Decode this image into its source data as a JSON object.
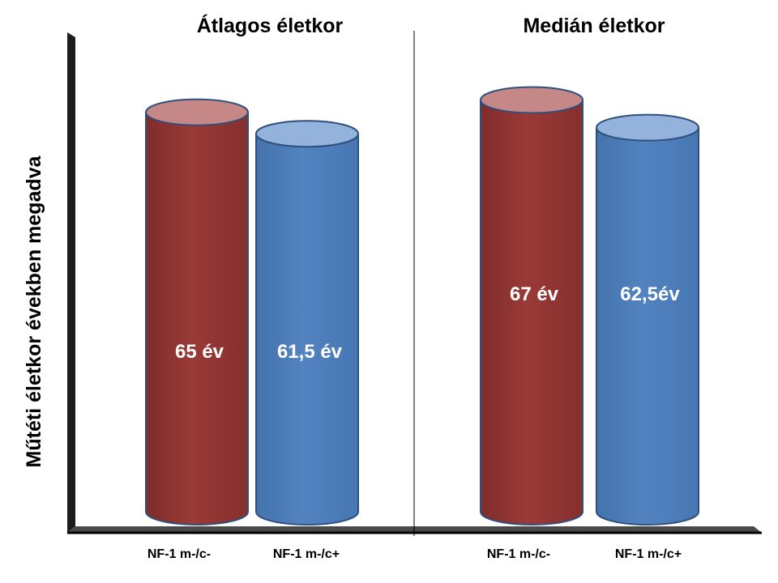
{
  "chart_data": {
    "type": "bar",
    "style": "3d-cylinder",
    "ylabel": "Műtéti életkor években megadva",
    "ylim": [
      0,
      72
    ],
    "grid": false,
    "legend": "none",
    "categories": [
      "NF-1 m-/c-",
      "NF-1 m-/c+"
    ],
    "colors": {
      "red": "#953735",
      "blue": "#4F81BD"
    },
    "panels": [
      {
        "title": "Átlagos életkor",
        "bars": [
          {
            "category": "NF-1 m-/c-",
            "value": 65,
            "label": "65 év",
            "color": "red"
          },
          {
            "category": "NF-1 m-/c+",
            "value": 61.5,
            "label": "61,5 év",
            "color": "blue"
          }
        ]
      },
      {
        "title": "Medián életkor",
        "bars": [
          {
            "category": "NF-1 m-/c-",
            "value": 67,
            "label": "67 év",
            "color": "red"
          },
          {
            "category": "NF-1 m-/c+",
            "value": 62.5,
            "label": "62,5év",
            "color": "blue"
          }
        ]
      }
    ]
  }
}
